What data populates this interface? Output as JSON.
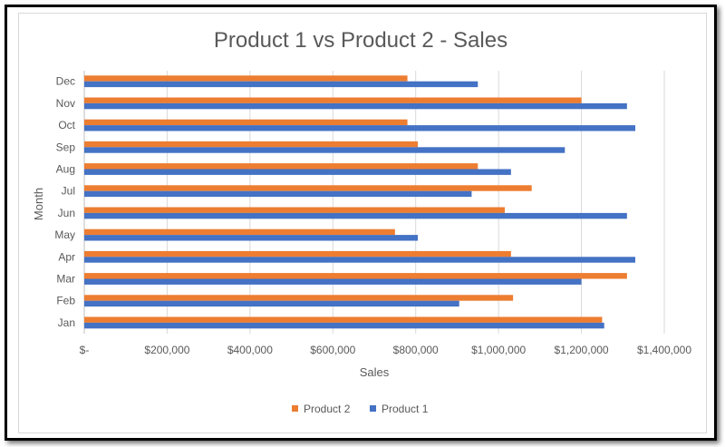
{
  "chart_data": {
    "type": "bar",
    "orientation": "horizontal",
    "title": "Product 1 vs Product 2 - Sales",
    "xlabel": "Sales",
    "ylabel": "Month",
    "categories": [
      "Jan",
      "Feb",
      "Mar",
      "Apr",
      "May",
      "Jun",
      "Jul",
      "Aug",
      "Sep",
      "Oct",
      "Nov",
      "Dec"
    ],
    "xlim": [
      0,
      1400000
    ],
    "x_ticks": [
      0,
      200000,
      400000,
      600000,
      800000,
      1000000,
      1200000,
      1400000
    ],
    "x_tick_labels": [
      "$-",
      "$200,000",
      "$400,000",
      "$600,000",
      "$800,000",
      "$1,000,000",
      "$1,200,000",
      "$1,400,000"
    ],
    "grid": "vertical",
    "legend_position": "bottom",
    "series": [
      {
        "name": "Product 2",
        "color": "#ed7d31",
        "values": [
          1250000,
          1035000,
          1310000,
          1030000,
          750000,
          1015000,
          1080000,
          950000,
          805000,
          780000,
          1200000,
          780000
        ]
      },
      {
        "name": "Product 1",
        "color": "#4472c4",
        "values": [
          1255000,
          905000,
          1200000,
          1330000,
          805000,
          1310000,
          935000,
          1030000,
          1160000,
          1330000,
          1310000,
          950000
        ]
      }
    ]
  }
}
